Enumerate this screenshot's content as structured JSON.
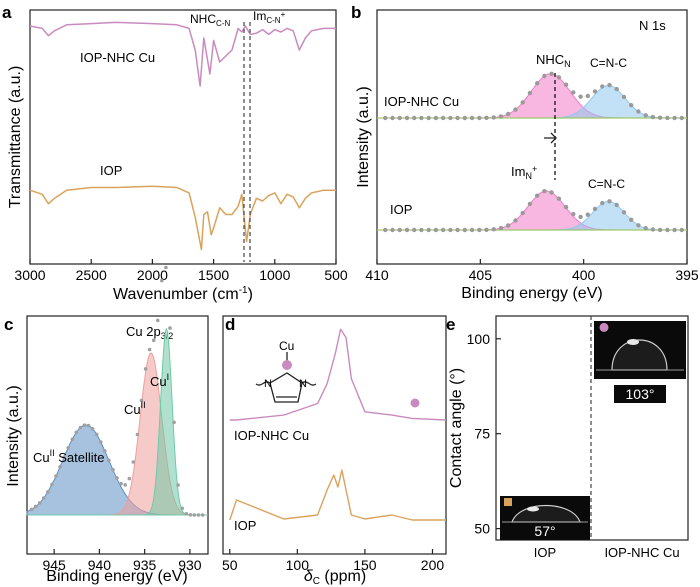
{
  "panels": {
    "a": {
      "letter": "a",
      "type": "line",
      "xlabel": "Wavenumber (cm",
      "xlabel_sup": "-1",
      "xlabel_tail": ")",
      "ylabel": "Transmittance (a.u.)",
      "ticks_x": [
        "3000",
        "2500",
        "2000",
        "1500",
        "1000",
        "500"
      ],
      "ann_nhc": "NHC",
      "ann_nhc_sub": "C-N",
      "ann_im": "Im",
      "ann_im_sub": "C-N",
      "ann_im_sup": "+",
      "series_labels": [
        "IOP-NHC Cu",
        "IOP"
      ],
      "colors": [
        "#c98bbf",
        "#d9a35c"
      ]
    },
    "b": {
      "letter": "b",
      "type": "line",
      "title": "N 1s",
      "xlabel": "Binding energy (eV)",
      "ylabel": "Intensity (a.u.)",
      "ticks_x": [
        "410",
        "405",
        "400",
        "395"
      ],
      "ann_nhc": "NHC",
      "ann_nhc_sub": "N",
      "ann_cnc": "C=N-C",
      "ann_im": "Im",
      "ann_im_sub": "N",
      "ann_im_sup": "+",
      "series_labels": [
        "IOP-NHC Cu",
        "IOP"
      ],
      "colors": [
        "#f07cc6",
        "#8fc8ef",
        "#9ec76a",
        "#9a9a9a"
      ]
    },
    "c": {
      "letter": "c",
      "type": "line",
      "title": "Cu 2p",
      "title_sub": "3/2",
      "xlabel": "Binding energy (eV)",
      "ylabel": "Intensity (a.u.)",
      "ticks_x": [
        "945",
        "940",
        "935",
        "930"
      ],
      "ann_cu1": "Cu",
      "ann_cu1_sup": "I",
      "ann_cu2": "Cu",
      "ann_cu2_sup": "II",
      "ann_sat": "Cu",
      "ann_sat_sup": "II",
      "ann_sat_tail": " Satellite",
      "colors": [
        "#5c8fc4",
        "#ef9f9a",
        "#6fc9a8"
      ]
    },
    "d": {
      "letter": "d",
      "type": "line",
      "xlabel": "δ",
      "xlabel_sub": "C",
      "xlabel_tail": " (ppm)",
      "ticks_x": [
        "50",
        "100",
        "150",
        "200"
      ],
      "series_labels": [
        "IOP-NHC Cu",
        "IOP"
      ],
      "struct_cu": "Cu",
      "struct_n": "N",
      "colors": [
        "#c98bbf",
        "#d9a35c"
      ]
    },
    "e": {
      "letter": "e",
      "type": "scatter",
      "ylabel": "Contact angle (°)",
      "ticks_y": [
        "50",
        "75",
        "100"
      ],
      "categories": [
        "IOP",
        "IOP-NHC Cu"
      ],
      "angle_labels": [
        "57°",
        "103°"
      ],
      "colors": [
        "#d9a35c",
        "#c98bbf"
      ]
    }
  },
  "chart_data": [
    {
      "panel": "a",
      "type": "line",
      "xlabel": "Wavenumber (cm-1)",
      "ylabel": "Transmittance (a.u.)",
      "xlim": [
        3000,
        500
      ],
      "annotations": [
        "NHCC-N",
        "ImC-N+"
      ],
      "series": [
        {
          "name": "IOP-NHC Cu",
          "x": [
            3000,
            2900,
            2850,
            2800,
            2700,
            2500,
            2300,
            2000,
            1800,
            1700,
            1650,
            1610,
            1580,
            1530,
            1500,
            1450,
            1400,
            1350,
            1300,
            1270,
            1240,
            1200,
            1150,
            1100,
            1050,
            1000,
            950,
            900,
            850,
            800,
            750,
            700,
            600,
            500
          ],
          "y": [
            0.9,
            0.88,
            0.82,
            0.86,
            0.91,
            0.92,
            0.93,
            0.92,
            0.91,
            0.88,
            0.7,
            0.4,
            0.8,
            0.5,
            0.78,
            0.6,
            0.65,
            0.7,
            0.88,
            0.85,
            0.9,
            0.83,
            0.84,
            0.87,
            0.83,
            0.87,
            0.85,
            0.88,
            0.86,
            0.7,
            0.8,
            0.86,
            0.88,
            0.88
          ]
        },
        {
          "name": "IOP",
          "x": [
            3000,
            2900,
            2850,
            2800,
            2700,
            2500,
            2300,
            2000,
            1800,
            1700,
            1650,
            1600,
            1580,
            1550,
            1520,
            1500,
            1450,
            1400,
            1350,
            1300,
            1270,
            1230,
            1200,
            1150,
            1100,
            1050,
            1000,
            950,
            900,
            850,
            800,
            750,
            700,
            600,
            500
          ],
          "y": [
            0.48,
            0.45,
            0.38,
            0.42,
            0.48,
            0.5,
            0.5,
            0.51,
            0.5,
            0.46,
            0.28,
            0.04,
            0.3,
            0.32,
            0.15,
            0.2,
            0.35,
            0.3,
            0.3,
            0.36,
            0.45,
            0.1,
            0.3,
            0.42,
            0.4,
            0.44,
            0.46,
            0.38,
            0.45,
            0.43,
            0.35,
            0.42,
            0.46,
            0.48,
            0.48
          ]
        }
      ]
    },
    {
      "panel": "b",
      "type": "line",
      "title": "N 1s",
      "xlabel": "Binding energy (eV)",
      "ylabel": "Intensity (a.u.)",
      "xlim": [
        410,
        395
      ],
      "series": [
        {
          "name": "IOP-NHC Cu",
          "peaks": [
            {
              "label": "NHCN",
              "center": 401.6,
              "height": 0.34,
              "fwhm": 2.2
            },
            {
              "label": "C=N-C",
              "center": 398.8,
              "height": 0.25,
              "fwhm": 1.9
            }
          ]
        },
        {
          "name": "IOP",
          "peaks": [
            {
              "label": "ImN+",
              "center": 401.8,
              "height": 0.3,
              "fwhm": 2.1
            },
            {
              "label": "C=N-C",
              "center": 398.8,
              "height": 0.22,
              "fwhm": 1.8
            }
          ]
        }
      ]
    },
    {
      "panel": "c",
      "type": "line",
      "title": "Cu 2p3/2",
      "xlabel": "Binding energy (eV)",
      "ylabel": "Intensity (a.u.)",
      "xlim": [
        948,
        928
      ],
      "series": [
        {
          "name": "CuII Satellite",
          "center": 941.5,
          "height": 0.3,
          "fwhm": 6.0
        },
        {
          "name": "CuII",
          "center": 934.3,
          "height": 0.54,
          "fwhm": 2.8
        },
        {
          "name": "CuI",
          "center": 932.6,
          "height": 0.62,
          "fwhm": 1.5
        }
      ]
    },
    {
      "panel": "d",
      "type": "line",
      "xlabel": "δC (ppm)",
      "xlim": [
        45,
        210
      ],
      "series": [
        {
          "name": "IOP-NHC Cu",
          "x": [
            50,
            55,
            90,
            115,
            122,
            128,
            132,
            136,
            140,
            150,
            170,
            185,
            210
          ],
          "y": [
            0.4,
            0.4,
            0.43,
            0.5,
            0.62,
            0.8,
            0.95,
            0.9,
            0.65,
            0.45,
            0.43,
            0.41,
            0.4
          ]
        },
        {
          "name": "IOP",
          "x": [
            50,
            55,
            90,
            115,
            122,
            127,
            130,
            133,
            136,
            140,
            150,
            170,
            185,
            210
          ],
          "y": [
            0.05,
            0.25,
            0.06,
            0.1,
            0.35,
            0.5,
            0.38,
            0.55,
            0.35,
            0.1,
            0.06,
            0.1,
            0.05,
            0.05
          ]
        }
      ]
    },
    {
      "panel": "e",
      "type": "scatter",
      "ylabel": "Contact angle (°)",
      "ylim": [
        47,
        106
      ],
      "categories": [
        "IOP",
        "IOP-NHC Cu"
      ],
      "values": [
        57,
        103
      ]
    }
  ]
}
